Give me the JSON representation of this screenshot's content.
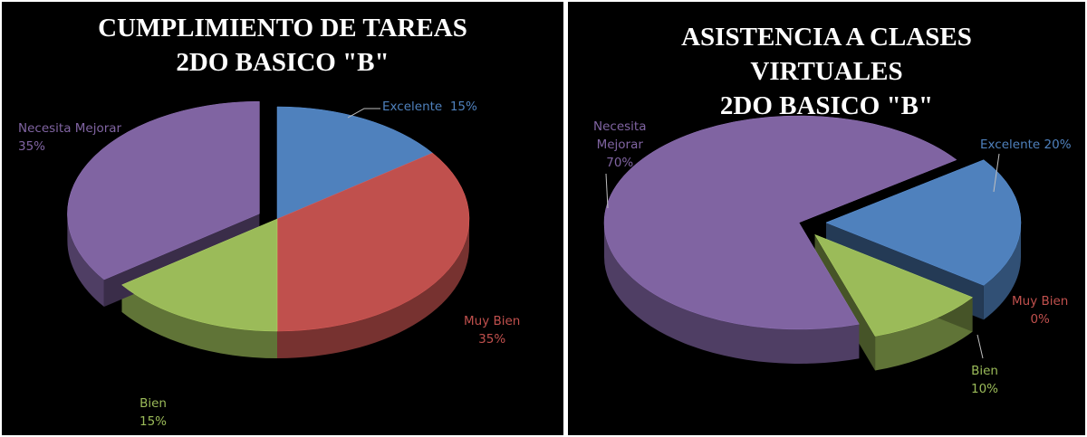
{
  "colors": {
    "excelente": "#4f81bd",
    "muy_bien": "#c0504d",
    "bien": "#9bbb59",
    "necesita_mejorar": "#8064a2",
    "background": "#000000"
  },
  "chart_data": [
    {
      "type": "pie",
      "title": [
        "CUMPLIMIENTO DE TAREAS",
        "2DO BASICO \"B\""
      ],
      "categories": [
        "Excelente",
        "Muy Bien",
        "Bien",
        "Necesita Mejorar"
      ],
      "values": [
        15,
        35,
        15,
        35
      ],
      "labels": [
        {
          "name": "Excelente",
          "value": "15%"
        },
        {
          "name": "Muy Bien",
          "value": "35%"
        },
        {
          "name": "Bien",
          "value": "15%"
        },
        {
          "name": "Necesita Mejorar",
          "value": "35%"
        }
      ],
      "exploded": [
        "Necesita Mejorar"
      ],
      "legend": "none"
    },
    {
      "type": "pie",
      "title": [
        "ASISTENCIA A CLASES",
        "VIRTUALES",
        "2DO BASICO \"B\""
      ],
      "categories": [
        "Excelente",
        "Muy Bien",
        "Bien",
        "Necesita Mejorar"
      ],
      "values": [
        20,
        0,
        10,
        70
      ],
      "labels": [
        {
          "name": "Excelente",
          "value": "20%"
        },
        {
          "name": "Muy Bien",
          "value": "0%"
        },
        {
          "name": "Bien",
          "value": "10%"
        },
        {
          "name": "Necesita Mejorar",
          "value": "70%"
        }
      ],
      "exploded": [
        "Excelente",
        "Bien"
      ],
      "legend": "none"
    }
  ]
}
